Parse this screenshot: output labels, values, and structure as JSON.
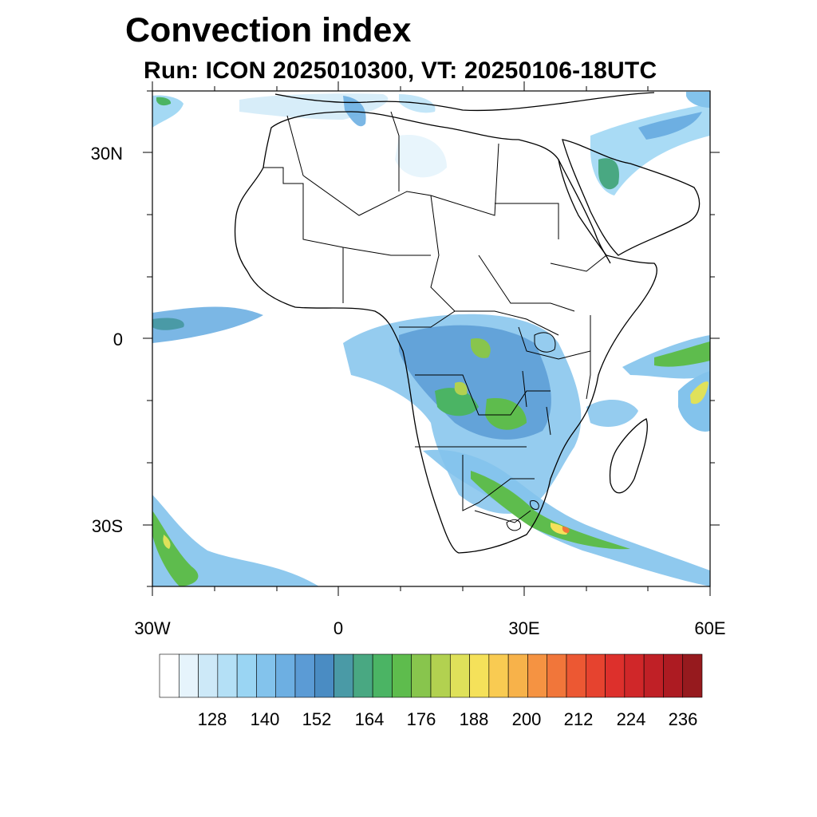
{
  "title": "Convection index",
  "subtitle": "Run: ICON 2025010300,  VT: 20250106-18UTC",
  "lat_labels": [
    "30N",
    "0",
    "30S"
  ],
  "lon_labels": [
    "30W",
    "0",
    "30E",
    "60E"
  ],
  "colorbar": {
    "labels": [
      "128",
      "140",
      "152",
      "164",
      "176",
      "188",
      "200",
      "212",
      "224",
      "236"
    ],
    "colors": [
      "#ffffff",
      "#e6f4fc",
      "#cde9f8",
      "#b4e0f6",
      "#9ad5f3",
      "#83c3ec",
      "#6dafe2",
      "#5b9bd5",
      "#4a8cc3",
      "#4a9aa6",
      "#49a882",
      "#4bb464",
      "#5ebc4d",
      "#88c54d",
      "#b2d150",
      "#dfe15a",
      "#f5e15a",
      "#f9cb52",
      "#f7b24a",
      "#f59342",
      "#f1763a",
      "#ec5833",
      "#e6432f",
      "#dd302c",
      "#d02729",
      "#c02026",
      "#ad1b22",
      "#961a1e"
    ]
  },
  "map": {
    "region": "Africa",
    "lon_range": [
      -30,
      60
    ],
    "lat_range": [
      -40,
      40
    ]
  }
}
